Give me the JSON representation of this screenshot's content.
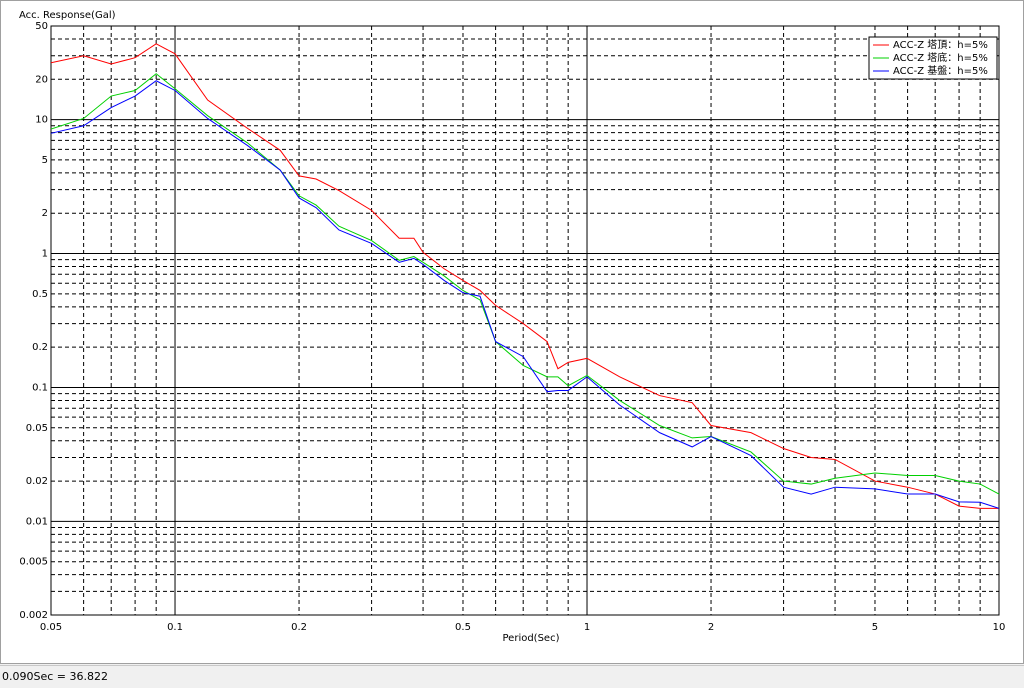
{
  "chart_data": {
    "type": "line",
    "title": "Acc. Response(Gal)",
    "x_label": "Period(Sec)",
    "xscale": "log",
    "yscale": "log",
    "grid": true,
    "minor_grid": true,
    "legend": "upper right",
    "xlim": [
      0.05,
      10
    ],
    "ylim": [
      0.002,
      50
    ],
    "xticks": [
      0.05,
      0.1,
      0.2,
      0.5,
      1,
      2,
      5,
      10
    ],
    "yticks": [
      0.002,
      0.005,
      0.01,
      0.02,
      0.05,
      0.1,
      0.2,
      0.5,
      1,
      2,
      5,
      10,
      20,
      50
    ],
    "x": [
      0.05,
      0.06,
      0.07,
      0.08,
      0.09,
      0.1,
      0.12,
      0.15,
      0.18,
      0.2,
      0.22,
      0.25,
      0.3,
      0.35,
      0.38,
      0.4,
      0.45,
      0.5,
      0.55,
      0.6,
      0.7,
      0.8,
      0.85,
      0.9,
      1,
      1.2,
      1.5,
      1.8,
      2,
      2.5,
      3,
      3.5,
      4,
      5,
      6,
      7,
      8,
      9,
      10
    ],
    "series": [
      {
        "name": "ACC-Z 塔頂：h=5%",
        "color": "#ff0000",
        "values": [
          26.6,
          30,
          26,
          29,
          36.8,
          31,
          14,
          8.6,
          5.9,
          3.8,
          3.6,
          2.95,
          2.1,
          1.3,
          1.3,
          1.02,
          0.77,
          0.63,
          0.53,
          0.41,
          0.3,
          0.22,
          0.138,
          0.154,
          0.165,
          0.12,
          0.087,
          0.077,
          0.052,
          0.046,
          0.035,
          0.03,
          0.029,
          0.02,
          0.018,
          0.016,
          0.013,
          0.0125,
          0.0125
        ]
      },
      {
        "name": "ACC-Z 塔底：h=5%",
        "color": "#00d000",
        "values": [
          8.5,
          10.2,
          15,
          16.5,
          22,
          17,
          10.7,
          6.7,
          4.2,
          2.7,
          2.3,
          1.6,
          1.25,
          0.89,
          0.95,
          0.86,
          0.68,
          0.53,
          0.45,
          0.22,
          0.146,
          0.12,
          0.12,
          0.103,
          0.123,
          0.08,
          0.052,
          0.042,
          0.043,
          0.033,
          0.02,
          0.019,
          0.021,
          0.023,
          0.022,
          0.022,
          0.02,
          0.019,
          0.016
        ]
      },
      {
        "name": "ACC-Z 基盤：h=5%",
        "color": "#0000ff",
        "values": [
          7.9,
          9,
          12.3,
          15,
          19.5,
          16.5,
          10.2,
          6.4,
          4.2,
          2.6,
          2.2,
          1.5,
          1.19,
          0.86,
          0.92,
          0.83,
          0.63,
          0.51,
          0.48,
          0.22,
          0.17,
          0.093,
          0.095,
          0.095,
          0.12,
          0.074,
          0.046,
          0.036,
          0.043,
          0.031,
          0.018,
          0.016,
          0.018,
          0.0175,
          0.016,
          0.016,
          0.014,
          0.0139,
          0.0125
        ]
      }
    ]
  },
  "status_bar": "0.090Sec = 36.822"
}
